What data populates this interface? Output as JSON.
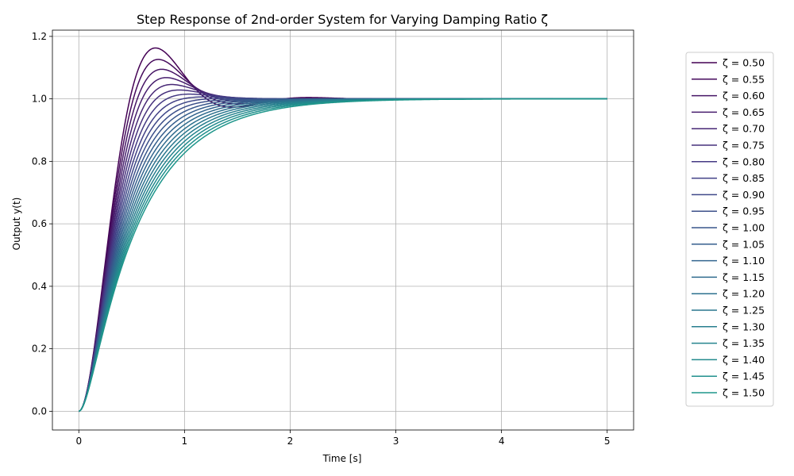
{
  "chart_data": {
    "type": "line",
    "title": "Step Response of 2nd-order System for Varying Damping Ratio ζ",
    "xlabel": "Time [s]",
    "ylabel": "Output y(t)",
    "xlim": [
      -0.25,
      5.25
    ],
    "ylim": [
      -0.06,
      1.22
    ],
    "x_ticks": [
      0,
      1,
      2,
      3,
      4,
      5
    ],
    "x_tick_labels": [
      "0",
      "1",
      "2",
      "3",
      "4",
      "5"
    ],
    "y_ticks": [
      0.0,
      0.2,
      0.4,
      0.6,
      0.8,
      1.0,
      1.2
    ],
    "y_tick_labels": [
      "0.0",
      "0.2",
      "0.4",
      "0.6",
      "0.8",
      "1.0",
      "1.2"
    ],
    "grid": true,
    "legend_position": "right, outside plot area",
    "natural_frequency_rad_s": 5,
    "t_range": [
      0,
      5
    ],
    "series": [
      {
        "name": "ζ = 0.50",
        "zeta": 0.5,
        "color": "#440154"
      },
      {
        "name": "ζ = 0.55",
        "zeta": 0.55,
        "color": "#450a5c"
      },
      {
        "name": "ζ = 0.60",
        "zeta": 0.6,
        "color": "#461565"
      },
      {
        "name": "ζ = 0.65",
        "zeta": 0.65,
        "color": "#471e6e"
      },
      {
        "name": "ζ = 0.70",
        "zeta": 0.7,
        "color": "#472775"
      },
      {
        "name": "ζ = 0.75",
        "zeta": 0.75,
        "color": "#46307c"
      },
      {
        "name": "ζ = 0.80",
        "zeta": 0.8,
        "color": "#443983"
      },
      {
        "name": "ζ = 0.85",
        "zeta": 0.85,
        "color": "#424086"
      },
      {
        "name": "ζ = 0.90",
        "zeta": 0.9,
        "color": "#3f4889"
      },
      {
        "name": "ζ = 0.95",
        "zeta": 0.95,
        "color": "#3c4f8a"
      },
      {
        "name": "ζ = 1.00",
        "zeta": 1.0,
        "color": "#38568b"
      },
      {
        "name": "ζ = 1.05",
        "zeta": 1.05,
        "color": "#355e8d"
      },
      {
        "name": "ζ = 1.10",
        "zeta": 1.1,
        "color": "#32648e"
      },
      {
        "name": "ζ = 1.15",
        "zeta": 1.15,
        "color": "#2f6b8e"
      },
      {
        "name": "ζ = 1.20",
        "zeta": 1.2,
        "color": "#2c718e"
      },
      {
        "name": "ζ = 1.25",
        "zeta": 1.25,
        "color": "#2a778e"
      },
      {
        "name": "ζ = 1.30",
        "zeta": 1.3,
        "color": "#277e8e"
      },
      {
        "name": "ζ = 1.35",
        "zeta": 1.35,
        "color": "#25848e"
      },
      {
        "name": "ζ = 1.40",
        "zeta": 1.4,
        "color": "#228a8d"
      },
      {
        "name": "ζ = 1.45",
        "zeta": 1.45,
        "color": "#20908d"
      },
      {
        "name": "ζ = 1.50",
        "zeta": 1.5,
        "color": "#1f968b"
      }
    ]
  }
}
